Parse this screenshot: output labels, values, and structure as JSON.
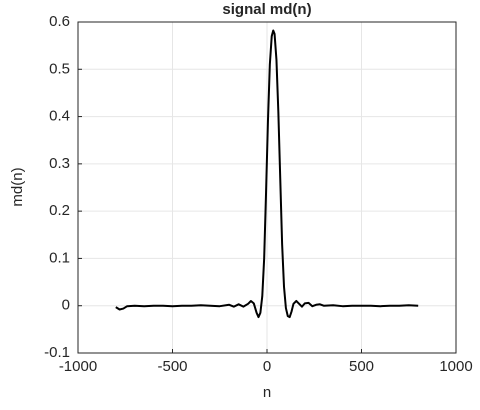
{
  "chart_data": {
    "type": "line",
    "title": "signal md(n)",
    "x_label": "n",
    "y_label": "md(n)",
    "x": [
      -800,
      -780,
      -760,
      -740,
      -700,
      -650,
      -600,
      -550,
      -500,
      -450,
      -400,
      -350,
      -300,
      -250,
      -200,
      -175,
      -150,
      -125,
      -100,
      -85,
      -70,
      -55,
      -45,
      -35,
      -25,
      -15,
      -5,
      5,
      15,
      25,
      33,
      40,
      50,
      60,
      70,
      80,
      90,
      100,
      110,
      120,
      130,
      140,
      155,
      170,
      185,
      200,
      220,
      240,
      260,
      280,
      300,
      350,
      400,
      450,
      500,
      550,
      600,
      650,
      700,
      750,
      800
    ],
    "values": [
      -0.003,
      -0.008,
      -0.006,
      -0.001,
      0.0,
      -0.001,
      0.0,
      0.0,
      -0.001,
      0.0,
      0.0,
      0.001,
      0.0,
      -0.001,
      0.002,
      -0.002,
      0.003,
      -0.002,
      0.004,
      0.01,
      0.005,
      -0.015,
      -0.024,
      -0.015,
      0.02,
      0.1,
      0.24,
      0.39,
      0.51,
      0.57,
      0.582,
      0.575,
      0.52,
      0.41,
      0.27,
      0.13,
      0.04,
      -0.005,
      -0.022,
      -0.024,
      -0.012,
      0.004,
      0.01,
      0.004,
      -0.002,
      0.005,
      0.006,
      -0.001,
      0.002,
      0.003,
      0.0,
      0.001,
      -0.001,
      0.0,
      0.0,
      0.0,
      -0.001,
      0.0,
      0.0,
      0.001,
      0.0
    ],
    "color": "#000000",
    "xlim": [
      -1000,
      1000
    ],
    "xticks": [
      -1000,
      -500,
      0,
      500,
      1000
    ],
    "ylim": [
      -0.1,
      0.6
    ],
    "yticks": [
      -0.1,
      0,
      0.1,
      0.2,
      0.3,
      0.4,
      0.5,
      0.6
    ],
    "grid": true
  }
}
